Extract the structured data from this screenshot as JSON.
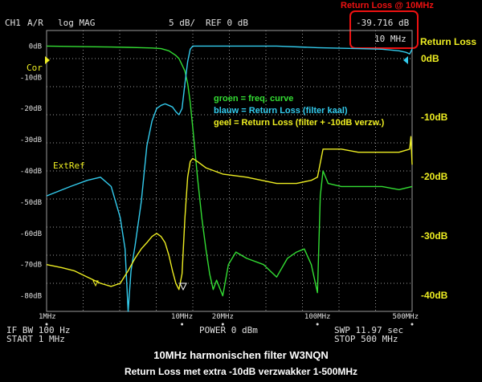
{
  "header": {
    "channel": "CH1",
    "mode": "A/R",
    "format": "log MAG",
    "scale": "5 dB/",
    "ref": "REF 0 dB"
  },
  "marker": {
    "title": "Return Loss @ 10MHz",
    "value": "-39.716 dB",
    "freq": "10 MHz"
  },
  "right_axis": {
    "title": "Return Loss",
    "labels": [
      "0dB",
      "-10dB",
      "-20dB",
      "-30dB",
      "-40dB"
    ]
  },
  "left_axis": {
    "labels": [
      "0dB",
      "-10dB",
      "-20dB",
      "-30dB",
      "-40dB",
      "-50dB",
      "-60dB",
      "-70dB",
      "-80dB"
    ],
    "cor": "Cor",
    "extref": "ExtRef"
  },
  "x_ticks": [
    "1MHz",
    "10MHz",
    "20MHz",
    "100MHz",
    "500MHz"
  ],
  "annotations": {
    "green": "groen = freq. curve",
    "cyan": "blauw = Return Loss (filter kaal)",
    "yellow": "geel   = Return Loss (filter + -10dB verzw.)"
  },
  "footer": {
    "ifbw": "IF BW 100 Hz",
    "start": "START  1 MHz",
    "power": "POWER  0 dBm",
    "swp": "SWP  11.97 sec",
    "stop": "STOP  500 MHz"
  },
  "caption": {
    "line1": "10MHz harmonischen filter W3NQN",
    "line2": "Return Loss met extra -10dB verzwakker  1-500MHz"
  },
  "colors": {
    "green": "#33dd33",
    "cyan": "#33ccee",
    "yellow": "#eeee22",
    "grid": "#9a9a9a",
    "red": "#ee1111"
  },
  "chart_data": {
    "type": "line",
    "x_scale": "log",
    "xlim_mhz": [
      1,
      500
    ],
    "ylim_db": [
      -85,
      5
    ],
    "series": [
      {
        "color": "green",
        "x_mhz": [
          1,
          2,
          3,
          4,
          5,
          6,
          7,
          8,
          9,
          9.5,
          10,
          10.5,
          11,
          11.5,
          12,
          12.5,
          13,
          14,
          15,
          16,
          17,
          18,
          20,
          22,
          25,
          30,
          40,
          50,
          60,
          70,
          80,
          90,
          100,
          105,
          110,
          120,
          150,
          200,
          300,
          400,
          500
        ],
        "y_db": [
          0,
          -0.2,
          -0.3,
          -0.4,
          -0.5,
          -0.6,
          -0.8,
          -1.5,
          -3,
          -4,
          -6,
          -8,
          -12,
          -18,
          -26,
          -34,
          -42,
          -55,
          -65,
          -73,
          -78,
          -75,
          -80,
          -70,
          -66,
          -68,
          -70,
          -74,
          -68,
          -66,
          -65,
          -70,
          -79,
          -48,
          -40,
          -44,
          -45,
          -45,
          -45,
          -46,
          -45
        ]
      },
      {
        "color": "cyan",
        "x_mhz": [
          1,
          1.5,
          2,
          2.5,
          3,
          3.5,
          3.8,
          4,
          4.2,
          4.5,
          5,
          5.5,
          6,
          6.5,
          7,
          7.5,
          8,
          8.5,
          9,
          9.5,
          10,
          10.5,
          11,
          11.5,
          12,
          13,
          14,
          16,
          20,
          30,
          50,
          100,
          200,
          300,
          400,
          450,
          480,
          500
        ],
        "y_db": [
          -48,
          -45,
          -43,
          -42,
          -45,
          -55,
          -65,
          -85,
          -72,
          -64,
          -50,
          -32,
          -24,
          -20,
          -19,
          -18.5,
          -19,
          -19.5,
          -21,
          -22,
          -20,
          -12,
          -5,
          -1,
          0,
          0,
          0,
          0,
          0,
          0,
          0,
          -0.5,
          -0.8,
          -1,
          -1.5,
          -2,
          -2.5,
          -1
        ]
      },
      {
        "color": "yellow",
        "x_mhz": [
          1,
          1.3,
          1.6,
          2,
          2.5,
          3,
          3.5,
          4,
          4.5,
          5,
          5.5,
          6,
          6.5,
          7,
          7.5,
          8,
          8.5,
          9,
          9.5,
          10,
          10.5,
          11,
          11.5,
          12,
          13,
          15,
          20,
          30,
          50,
          70,
          90,
          100,
          110,
          150,
          200,
          300,
          400,
          480,
          490,
          500
        ],
        "y_db": [
          -70,
          -71,
          -72,
          -74,
          -76,
          -77,
          -76,
          -72,
          -68,
          -65,
          -63,
          -61,
          -60,
          -61,
          -63,
          -67,
          -72,
          -76,
          -78,
          -73,
          -55,
          -42,
          -37,
          -36,
          -37,
          -39,
          -41,
          -42,
          -44,
          -44,
          -43,
          -42,
          -33,
          -33,
          -34,
          -34,
          -34,
          -33,
          -29,
          -38
        ]
      }
    ]
  }
}
